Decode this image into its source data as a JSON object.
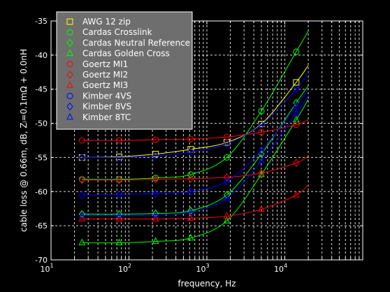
{
  "chart_data": {
    "type": "line",
    "xlabel": "frequency, Hz",
    "ylabel": "cable loss @ 0.66m, dB, Zₗ=0.1mΩ + 0.0nH",
    "xscale": "log",
    "xlim": [
      10,
      100000
    ],
    "ylim": [
      -70,
      -35
    ],
    "grid": true,
    "legend_position": "top-left",
    "x_tick_labels": [
      "10^1",
      "10^2",
      "10^3",
      "10^4"
    ],
    "y_ticks": [
      -70,
      -65,
      -60,
      -55,
      -50,
      -45,
      -40,
      -35
    ],
    "series": [
      {
        "name": "AWG 12 zip",
        "color": "#ffff00",
        "marker": "square",
        "x": [
          25,
          75,
          220,
          620,
          1800,
          5000,
          14000,
          20000
        ],
        "y": [
          -55.0,
          -54.9,
          -54.5,
          -53.8,
          -52.8,
          -50.1,
          -44.0,
          -41.5
        ]
      },
      {
        "name": "Cardas Crosslink",
        "color": "#00ff00",
        "marker": "circle",
        "x": [
          25,
          75,
          220,
          620,
          1800,
          5000,
          14000,
          20000
        ],
        "y": [
          -58.2,
          -58.2,
          -58.0,
          -57.5,
          -55.0,
          -48.2,
          -39.5,
          -36.5
        ]
      },
      {
        "name": "Cardas Neutral Reference",
        "color": "#00ff00",
        "marker": "diamond",
        "x": [
          25,
          75,
          220,
          620,
          1800,
          5000,
          14000,
          20000
        ],
        "y": [
          -63.3,
          -63.3,
          -63.2,
          -62.8,
          -60.5,
          -54.5,
          -47.0,
          -44.5
        ]
      },
      {
        "name": "Cardas Golden Cross",
        "color": "#00ff00",
        "marker": "triangle",
        "x": [
          25,
          75,
          220,
          620,
          1800,
          5000,
          14000,
          20000
        ],
        "y": [
          -67.5,
          -67.5,
          -67.3,
          -66.8,
          -64.3,
          -57.5,
          -49.5,
          -46.5
        ]
      },
      {
        "name": "Goertz MI1",
        "color": "#ff0000",
        "marker": "circle",
        "x": [
          25,
          75,
          220,
          620,
          1800,
          5000,
          14000,
          20000
        ],
        "y": [
          -52.5,
          -52.5,
          -52.4,
          -52.3,
          -52.0,
          -51.3,
          -50.2,
          -49.5
        ]
      },
      {
        "name": "Goertz MI2",
        "color": "#ff0000",
        "marker": "diamond",
        "x": [
          25,
          75,
          220,
          620,
          1800,
          5000,
          14000,
          20000
        ],
        "y": [
          -58.3,
          -58.3,
          -58.2,
          -58.1,
          -57.9,
          -57.3,
          -55.8,
          -54.8
        ]
      },
      {
        "name": "Goertz MI3",
        "color": "#ff0000",
        "marker": "triangle",
        "x": [
          25,
          75,
          220,
          620,
          1800,
          5000,
          14000,
          20000
        ],
        "y": [
          -64.0,
          -64.0,
          -64.0,
          -63.9,
          -63.6,
          -62.6,
          -60.5,
          -59.0
        ]
      },
      {
        "name": "Kimber 4VS",
        "color": "#0000ff",
        "marker": "circle",
        "x": [
          25,
          75,
          220,
          620,
          1800,
          5000,
          14000,
          20000
        ],
        "y": [
          -55.0,
          -55.0,
          -54.8,
          -54.2,
          -53.0,
          -50.2,
          -45.0,
          -42.5
        ]
      },
      {
        "name": "Kimber 8VS",
        "color": "#0000ff",
        "marker": "diamond",
        "x": [
          25,
          75,
          220,
          620,
          1800,
          5000,
          14000,
          20000
        ],
        "y": [
          -60.5,
          -60.4,
          -60.3,
          -60.0,
          -58.5,
          -54.0,
          -47.5,
          -45.0
        ]
      },
      {
        "name": "Kimber 8TC",
        "color": "#0000ff",
        "marker": "triangle",
        "x": [
          25,
          75,
          220,
          620,
          1800,
          5000,
          14000,
          20000
        ],
        "y": [
          -63.5,
          -63.5,
          -63.4,
          -63.0,
          -61.0,
          -55.5,
          -48.5,
          -46.0
        ]
      }
    ]
  }
}
